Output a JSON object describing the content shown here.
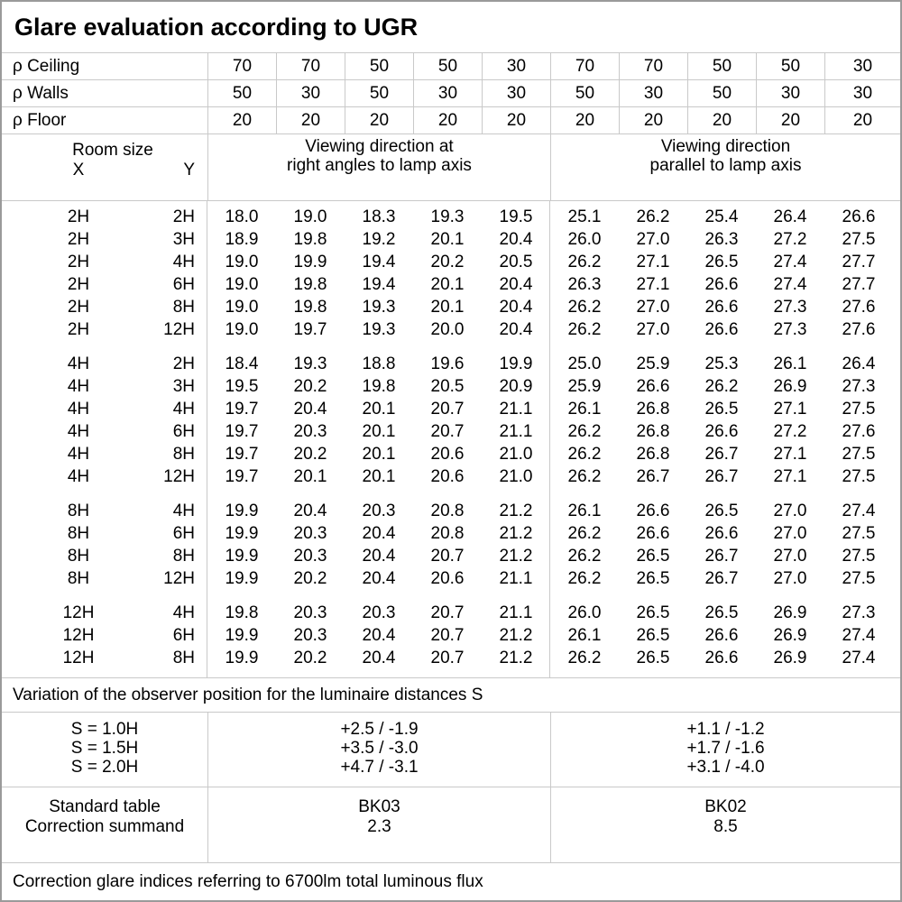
{
  "title": "Glare evaluation according to UGR",
  "reflectance_rows": [
    {
      "label": "ρ Ceiling",
      "values": [
        "70",
        "70",
        "50",
        "50",
        "30",
        "70",
        "70",
        "50",
        "50",
        "30"
      ]
    },
    {
      "label": "ρ Walls",
      "values": [
        "50",
        "30",
        "50",
        "30",
        "30",
        "50",
        "30",
        "50",
        "30",
        "30"
      ]
    },
    {
      "label": "ρ Floor",
      "values": [
        "20",
        "20",
        "20",
        "20",
        "20",
        "20",
        "20",
        "20",
        "20",
        "20"
      ]
    }
  ],
  "header": {
    "room_size": "Room size",
    "x_label": "X",
    "y_label": "Y",
    "left_heading_line1": "Viewing direction at",
    "left_heading_line2": "right angles to lamp axis",
    "right_heading_line1": "Viewing direction",
    "right_heading_line2": "parallel to lamp axis"
  },
  "ugr_groups": [
    {
      "rows": [
        {
          "x": "2H",
          "y": "2H",
          "right_angles": [
            "18.0",
            "19.0",
            "18.3",
            "19.3",
            "19.5"
          ],
          "parallel": [
            "25.1",
            "26.2",
            "25.4",
            "26.4",
            "26.6"
          ]
        },
        {
          "x": "2H",
          "y": "3H",
          "right_angles": [
            "18.9",
            "19.8",
            "19.2",
            "20.1",
            "20.4"
          ],
          "parallel": [
            "26.0",
            "27.0",
            "26.3",
            "27.2",
            "27.5"
          ]
        },
        {
          "x": "2H",
          "y": "4H",
          "right_angles": [
            "19.0",
            "19.9",
            "19.4",
            "20.2",
            "20.5"
          ],
          "parallel": [
            "26.2",
            "27.1",
            "26.5",
            "27.4",
            "27.7"
          ]
        },
        {
          "x": "2H",
          "y": "6H",
          "right_angles": [
            "19.0",
            "19.8",
            "19.4",
            "20.1",
            "20.4"
          ],
          "parallel": [
            "26.3",
            "27.1",
            "26.6",
            "27.4",
            "27.7"
          ]
        },
        {
          "x": "2H",
          "y": "8H",
          "right_angles": [
            "19.0",
            "19.8",
            "19.3",
            "20.1",
            "20.4"
          ],
          "parallel": [
            "26.2",
            "27.0",
            "26.6",
            "27.3",
            "27.6"
          ]
        },
        {
          "x": "2H",
          "y": "12H",
          "right_angles": [
            "19.0",
            "19.7",
            "19.3",
            "20.0",
            "20.4"
          ],
          "parallel": [
            "26.2",
            "27.0",
            "26.6",
            "27.3",
            "27.6"
          ]
        }
      ]
    },
    {
      "rows": [
        {
          "x": "4H",
          "y": "2H",
          "right_angles": [
            "18.4",
            "19.3",
            "18.8",
            "19.6",
            "19.9"
          ],
          "parallel": [
            "25.0",
            "25.9",
            "25.3",
            "26.1",
            "26.4"
          ]
        },
        {
          "x": "4H",
          "y": "3H",
          "right_angles": [
            "19.5",
            "20.2",
            "19.8",
            "20.5",
            "20.9"
          ],
          "parallel": [
            "25.9",
            "26.6",
            "26.2",
            "26.9",
            "27.3"
          ]
        },
        {
          "x": "4H",
          "y": "4H",
          "right_angles": [
            "19.7",
            "20.4",
            "20.1",
            "20.7",
            "21.1"
          ],
          "parallel": [
            "26.1",
            "26.8",
            "26.5",
            "27.1",
            "27.5"
          ]
        },
        {
          "x": "4H",
          "y": "6H",
          "right_angles": [
            "19.7",
            "20.3",
            "20.1",
            "20.7",
            "21.1"
          ],
          "parallel": [
            "26.2",
            "26.8",
            "26.6",
            "27.2",
            "27.6"
          ]
        },
        {
          "x": "4H",
          "y": "8H",
          "right_angles": [
            "19.7",
            "20.2",
            "20.1",
            "20.6",
            "21.0"
          ],
          "parallel": [
            "26.2",
            "26.8",
            "26.7",
            "27.1",
            "27.5"
          ]
        },
        {
          "x": "4H",
          "y": "12H",
          "right_angles": [
            "19.7",
            "20.1",
            "20.1",
            "20.6",
            "21.0"
          ],
          "parallel": [
            "26.2",
            "26.7",
            "26.7",
            "27.1",
            "27.5"
          ]
        }
      ]
    },
    {
      "rows": [
        {
          "x": "8H",
          "y": "4H",
          "right_angles": [
            "19.9",
            "20.4",
            "20.3",
            "20.8",
            "21.2"
          ],
          "parallel": [
            "26.1",
            "26.6",
            "26.5",
            "27.0",
            "27.4"
          ]
        },
        {
          "x": "8H",
          "y": "6H",
          "right_angles": [
            "19.9",
            "20.3",
            "20.4",
            "20.8",
            "21.2"
          ],
          "parallel": [
            "26.2",
            "26.6",
            "26.6",
            "27.0",
            "27.5"
          ]
        },
        {
          "x": "8H",
          "y": "8H",
          "right_angles": [
            "19.9",
            "20.3",
            "20.4",
            "20.7",
            "21.2"
          ],
          "parallel": [
            "26.2",
            "26.5",
            "26.7",
            "27.0",
            "27.5"
          ]
        },
        {
          "x": "8H",
          "y": "12H",
          "right_angles": [
            "19.9",
            "20.2",
            "20.4",
            "20.6",
            "21.1"
          ],
          "parallel": [
            "26.2",
            "26.5",
            "26.7",
            "27.0",
            "27.5"
          ]
        }
      ]
    },
    {
      "rows": [
        {
          "x": "12H",
          "y": "4H",
          "right_angles": [
            "19.8",
            "20.3",
            "20.3",
            "20.7",
            "21.1"
          ],
          "parallel": [
            "26.0",
            "26.5",
            "26.5",
            "26.9",
            "27.3"
          ]
        },
        {
          "x": "12H",
          "y": "6H",
          "right_angles": [
            "19.9",
            "20.3",
            "20.4",
            "20.7",
            "21.2"
          ],
          "parallel": [
            "26.1",
            "26.5",
            "26.6",
            "26.9",
            "27.4"
          ]
        },
        {
          "x": "12H",
          "y": "8H",
          "right_angles": [
            "19.9",
            "20.2",
            "20.4",
            "20.7",
            "21.2"
          ],
          "parallel": [
            "26.2",
            "26.5",
            "26.6",
            "26.9",
            "27.4"
          ]
        }
      ]
    }
  ],
  "variation_note": "Variation of the observer position for the luminaire distances S",
  "spacing_rows": [
    {
      "label": "S = 1.0H",
      "right_angles": "+2.5 / -1.9",
      "parallel": "+1.1 / -1.2"
    },
    {
      "label": "S = 1.5H",
      "right_angles": "+3.5 / -3.0",
      "parallel": "+1.7 / -1.6"
    },
    {
      "label": "S = 2.0H",
      "right_angles": "+4.7 / -3.1",
      "parallel": "+3.1 / -4.0"
    }
  ],
  "standard_table": {
    "label": "Standard table",
    "right_angles": "BK03",
    "parallel": "BK02"
  },
  "correction_summand": {
    "label": "Correction summand",
    "right_angles": "2.3",
    "parallel": "8.5"
  },
  "footer_note": "Correction glare indices referring to 6700lm total luminous flux"
}
